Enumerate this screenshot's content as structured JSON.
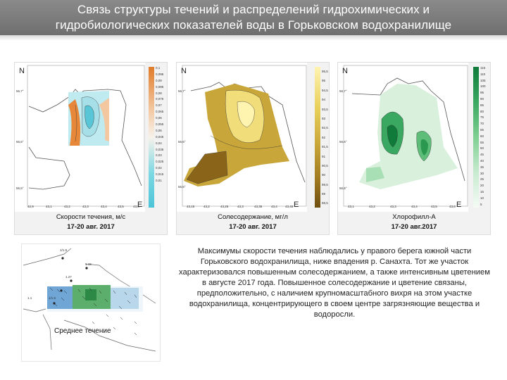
{
  "title": {
    "line1": "Связь структуры течений и распределений гидрохимических и",
    "line2": "гидробиологических показателей воды в Горьковском водохранилище"
  },
  "maps": [
    {
      "caption": "Скорости течения, м/с",
      "date": "17-20 авг. 2017",
      "north": "N",
      "east": "E",
      "lat_labels": [
        "56,7°",
        "56,6°",
        "56,5°"
      ],
      "lon_labels": [
        "42,9",
        "43,1",
        "43,2",
        "43,3",
        "43,4",
        "43,5",
        "43,6"
      ],
      "scale_ticks": [
        "0,1",
        "0,095",
        "0,09",
        "0,085",
        "0,08",
        "0,075",
        "0,07",
        "0,065",
        "0,06",
        "0,055",
        "0,05",
        "0,045",
        "0,04",
        "0,035",
        "0,03",
        "0,025",
        "0,02",
        "0,015",
        "0,01"
      ],
      "scale_colors": [
        "#e07b2a",
        "#f3c7a0",
        "#f7f2ea",
        "#7fd9e3",
        "#4cc4d8"
      ]
    },
    {
      "caption": "Солесодержание, мг/л",
      "date": "17-20 авг. 2017",
      "north": "N",
      "east": "E",
      "lat_labels": [
        "56,7°",
        "56,6°",
        "56,5°"
      ],
      "lon_labels": [
        "43,15",
        "43,2",
        "43,25",
        "43,3",
        "43,35",
        "43,4",
        "43,45"
      ],
      "scale_ticks": [
        "95,5",
        "95",
        "94,5",
        "94",
        "93,5",
        "93",
        "92,5",
        "92",
        "91,5",
        "91",
        "90,5",
        "90",
        "89,5",
        "89",
        "88,5"
      ],
      "scale_colors": [
        "#fff3b0",
        "#e8cf5a",
        "#c9a63a",
        "#a07a20",
        "#6e4e10"
      ]
    },
    {
      "caption": "Хлорофилл-А",
      "date": "17-20 авг.2017",
      "north": "N",
      "east": "E",
      "lat_labels": [
        "56,7°",
        "56,6°",
        "56,5°"
      ],
      "lon_labels": [
        "43,1",
        "43,2",
        "43,3",
        "43,4",
        "43,5",
        "43,6"
      ],
      "scale_ticks": [
        "115",
        "110",
        "105",
        "100",
        "95",
        "90",
        "85",
        "80",
        "75",
        "70",
        "65",
        "60",
        "55",
        "50",
        "45",
        "40",
        "35",
        "30",
        "25",
        "20",
        "15",
        "10",
        "5"
      ],
      "scale_colors": [
        "#0f7a3a",
        "#3aa860",
        "#7fcf92",
        "#c8ebd0",
        "#f4fbf5"
      ]
    }
  ],
  "current_map": {
    "label": "Среднее течение",
    "station_labels": [
      "1/1.9",
      "1.18",
      "1.27",
      "1/1.6",
      "1.1"
    ]
  },
  "paragraph": "Максимумы скорости течения наблюдались у правого берега южной части Горьковского водохранилища, ниже впадения р. Санахта. Тот же участок характеризовался повышенным солесодержанием, а также интенсивным цветением в августе 2017 года. Повышенное солесодержание и цветение связаны, предположительно, с наличием крупномасштабного вихря на этом участке водохранилища, концентрирующего в своем центре загрязняющие вещества и водоросли."
}
